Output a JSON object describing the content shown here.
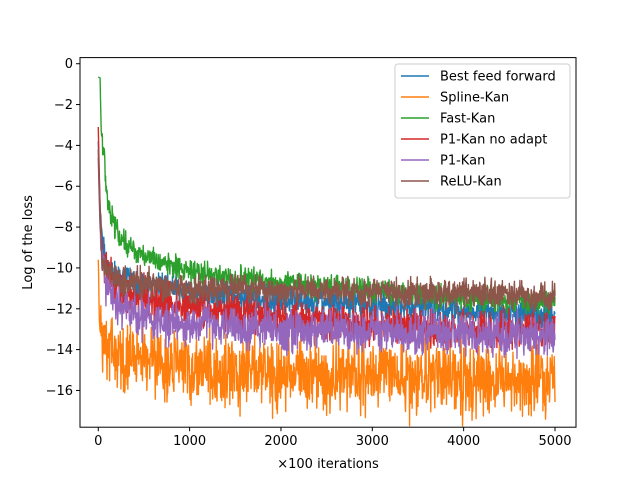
{
  "chart_data": {
    "type": "line",
    "title": "",
    "xlabel": "×100 iterations",
    "ylabel": "Log of the loss",
    "xlim": [
      -200,
      5230
    ],
    "ylim": [
      -17.8,
      0.3
    ],
    "xticks": [
      0,
      1000,
      2000,
      3000,
      4000,
      5000
    ],
    "yticks": [
      0,
      -2,
      -4,
      -6,
      -8,
      -10,
      -12,
      -14,
      -16
    ],
    "grid": false,
    "legend_position": "top-right",
    "series": [
      {
        "name": "Best feed forward",
        "color": "#1f77b4",
        "x": [
          0,
          10,
          20,
          40,
          60,
          80,
          100,
          150,
          200,
          300,
          500,
          700,
          1000,
          1500,
          2000,
          2500,
          3000,
          3500,
          4000,
          4500,
          5000
        ],
        "y": [
          -3.8,
          -5.5,
          -7.0,
          -8.5,
          -9.2,
          -9.6,
          -9.9,
          -10.2,
          -10.4,
          -10.6,
          -10.8,
          -11.0,
          -11.2,
          -11.4,
          -11.6,
          -11.7,
          -11.8,
          -11.9,
          -12.1,
          -12.2,
          -12.4
        ],
        "noise": 0.35
      },
      {
        "name": "Spline-Kan",
        "color": "#ff7f0e",
        "x": [
          0,
          5,
          10,
          20,
          40,
          60,
          100,
          150,
          200,
          300,
          500,
          700,
          1000,
          1500,
          2000,
          2500,
          3000,
          3500,
          4000,
          4500,
          5000
        ],
        "y": [
          -9.6,
          -10.5,
          -12.4,
          -13.1,
          -13.4,
          -13.6,
          -13.8,
          -14.0,
          -14.1,
          -14.3,
          -14.6,
          -14.8,
          -15.0,
          -15.1,
          -15.2,
          -15.2,
          -15.3,
          -15.3,
          -15.4,
          -15.4,
          -15.5
        ],
        "noise": 0.85
      },
      {
        "name": "Fast-Kan",
        "color": "#2ca02c",
        "x": [
          0,
          20,
          30,
          40,
          60,
          80,
          100,
          150,
          200,
          300,
          500,
          700,
          1000,
          1500,
          2000,
          2500,
          3000,
          3500,
          4000,
          4500,
          5000
        ],
        "y": [
          -0.65,
          -0.7,
          -3.1,
          -3.8,
          -4.4,
          -5.5,
          -6.5,
          -7.6,
          -8.2,
          -8.8,
          -9.4,
          -9.8,
          -10.2,
          -10.5,
          -10.7,
          -10.9,
          -11.1,
          -11.3,
          -11.5,
          -11.6,
          -11.7
        ],
        "noise": 0.28
      },
      {
        "name": "P1-Kan no adapt",
        "color": "#d62728",
        "x": [
          0,
          10,
          20,
          40,
          60,
          100,
          150,
          200,
          300,
          500,
          700,
          1000,
          1500,
          2000,
          2500,
          3000,
          3500,
          4000,
          4500,
          5000
        ],
        "y": [
          -3.1,
          -5.2,
          -7.2,
          -9.0,
          -9.8,
          -10.3,
          -10.6,
          -10.9,
          -11.2,
          -11.5,
          -11.7,
          -11.9,
          -12.1,
          -12.4,
          -12.6,
          -12.8,
          -12.9,
          -13.0,
          -13.0,
          -13.0
        ],
        "noise": 0.45
      },
      {
        "name": "P1-Kan",
        "color": "#9467bd",
        "x": [
          0,
          10,
          20,
          40,
          60,
          100,
          150,
          200,
          300,
          500,
          700,
          1000,
          1500,
          2000,
          2500,
          3000,
          3500,
          4000,
          4500,
          5000
        ],
        "y": [
          -4.6,
          -6.5,
          -8.0,
          -9.5,
          -10.2,
          -10.9,
          -11.3,
          -11.6,
          -12.0,
          -12.4,
          -12.6,
          -12.8,
          -12.9,
          -13.0,
          -13.0,
          -13.1,
          -13.1,
          -13.2,
          -13.3,
          -13.4
        ],
        "noise": 0.5
      },
      {
        "name": "ReLU-Kan",
        "color": "#8c564b",
        "x": [
          0,
          10,
          20,
          40,
          60,
          100,
          150,
          200,
          300,
          500,
          700,
          1000,
          1500,
          2000,
          2500,
          3000,
          3500,
          4000,
          4500,
          5000
        ],
        "y": [
          -4.2,
          -6.0,
          -7.8,
          -9.2,
          -9.8,
          -10.2,
          -10.5,
          -10.6,
          -10.7,
          -10.8,
          -10.9,
          -11.0,
          -11.0,
          -11.1,
          -11.1,
          -11.2,
          -11.2,
          -11.3,
          -11.3,
          -11.4
        ],
        "noise": 0.35
      }
    ]
  }
}
